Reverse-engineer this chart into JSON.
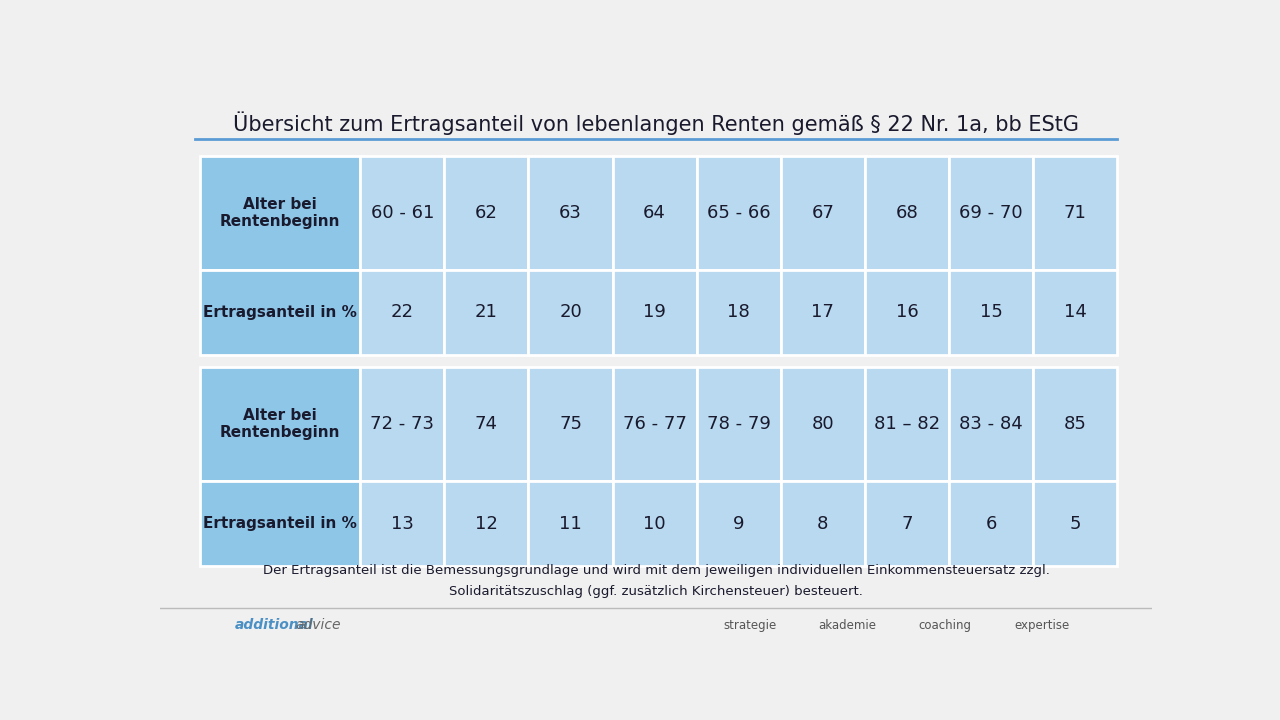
{
  "title": "Übersicht zum Ertragsanteil von lebenlangen Renten gemäß § 22 Nr. 1a, bb EStG",
  "title_fontsize": 15,
  "bg_color": "#f0f0f0",
  "table_bg_light": "#8ec6e8",
  "table_bg_lighter": "#b8d9ef",
  "text_color": "#1a1a2e",
  "row1_ages": [
    "60 - 61",
    "62",
    "63",
    "64",
    "65 - 66",
    "67",
    "68",
    "69 - 70",
    "71"
  ],
  "row1_values": [
    "22",
    "21",
    "20",
    "19",
    "18",
    "17",
    "16",
    "15",
    "14"
  ],
  "row2_ages": [
    "72 - 73",
    "74",
    "75",
    "76 - 77",
    "78 - 79",
    "80",
    "81 – 82",
    "83 - 84",
    "85"
  ],
  "row2_values": [
    "13",
    "12",
    "11",
    "10",
    "9",
    "8",
    "7",
    "6",
    "5"
  ],
  "header_label": "Alter bei\nRentenbeginn",
  "data_label": "Ertragsanteil in %",
  "footnote_line1": "Der Ertragsanteil ist die Bemessungsgrundlage und wird mit dem jeweiligen individuellen Einkommensteuersatz zzgl.",
  "footnote_line2": "Solidaritätszuschlag (ggf. zusätzlich Kirchensteuer) besteuert.",
  "brand_items": [
    "strategie",
    "akademie",
    "coaching",
    "expertise"
  ],
  "blue_line_color": "#5b9bd5",
  "cell_border_color": "#ffffff"
}
